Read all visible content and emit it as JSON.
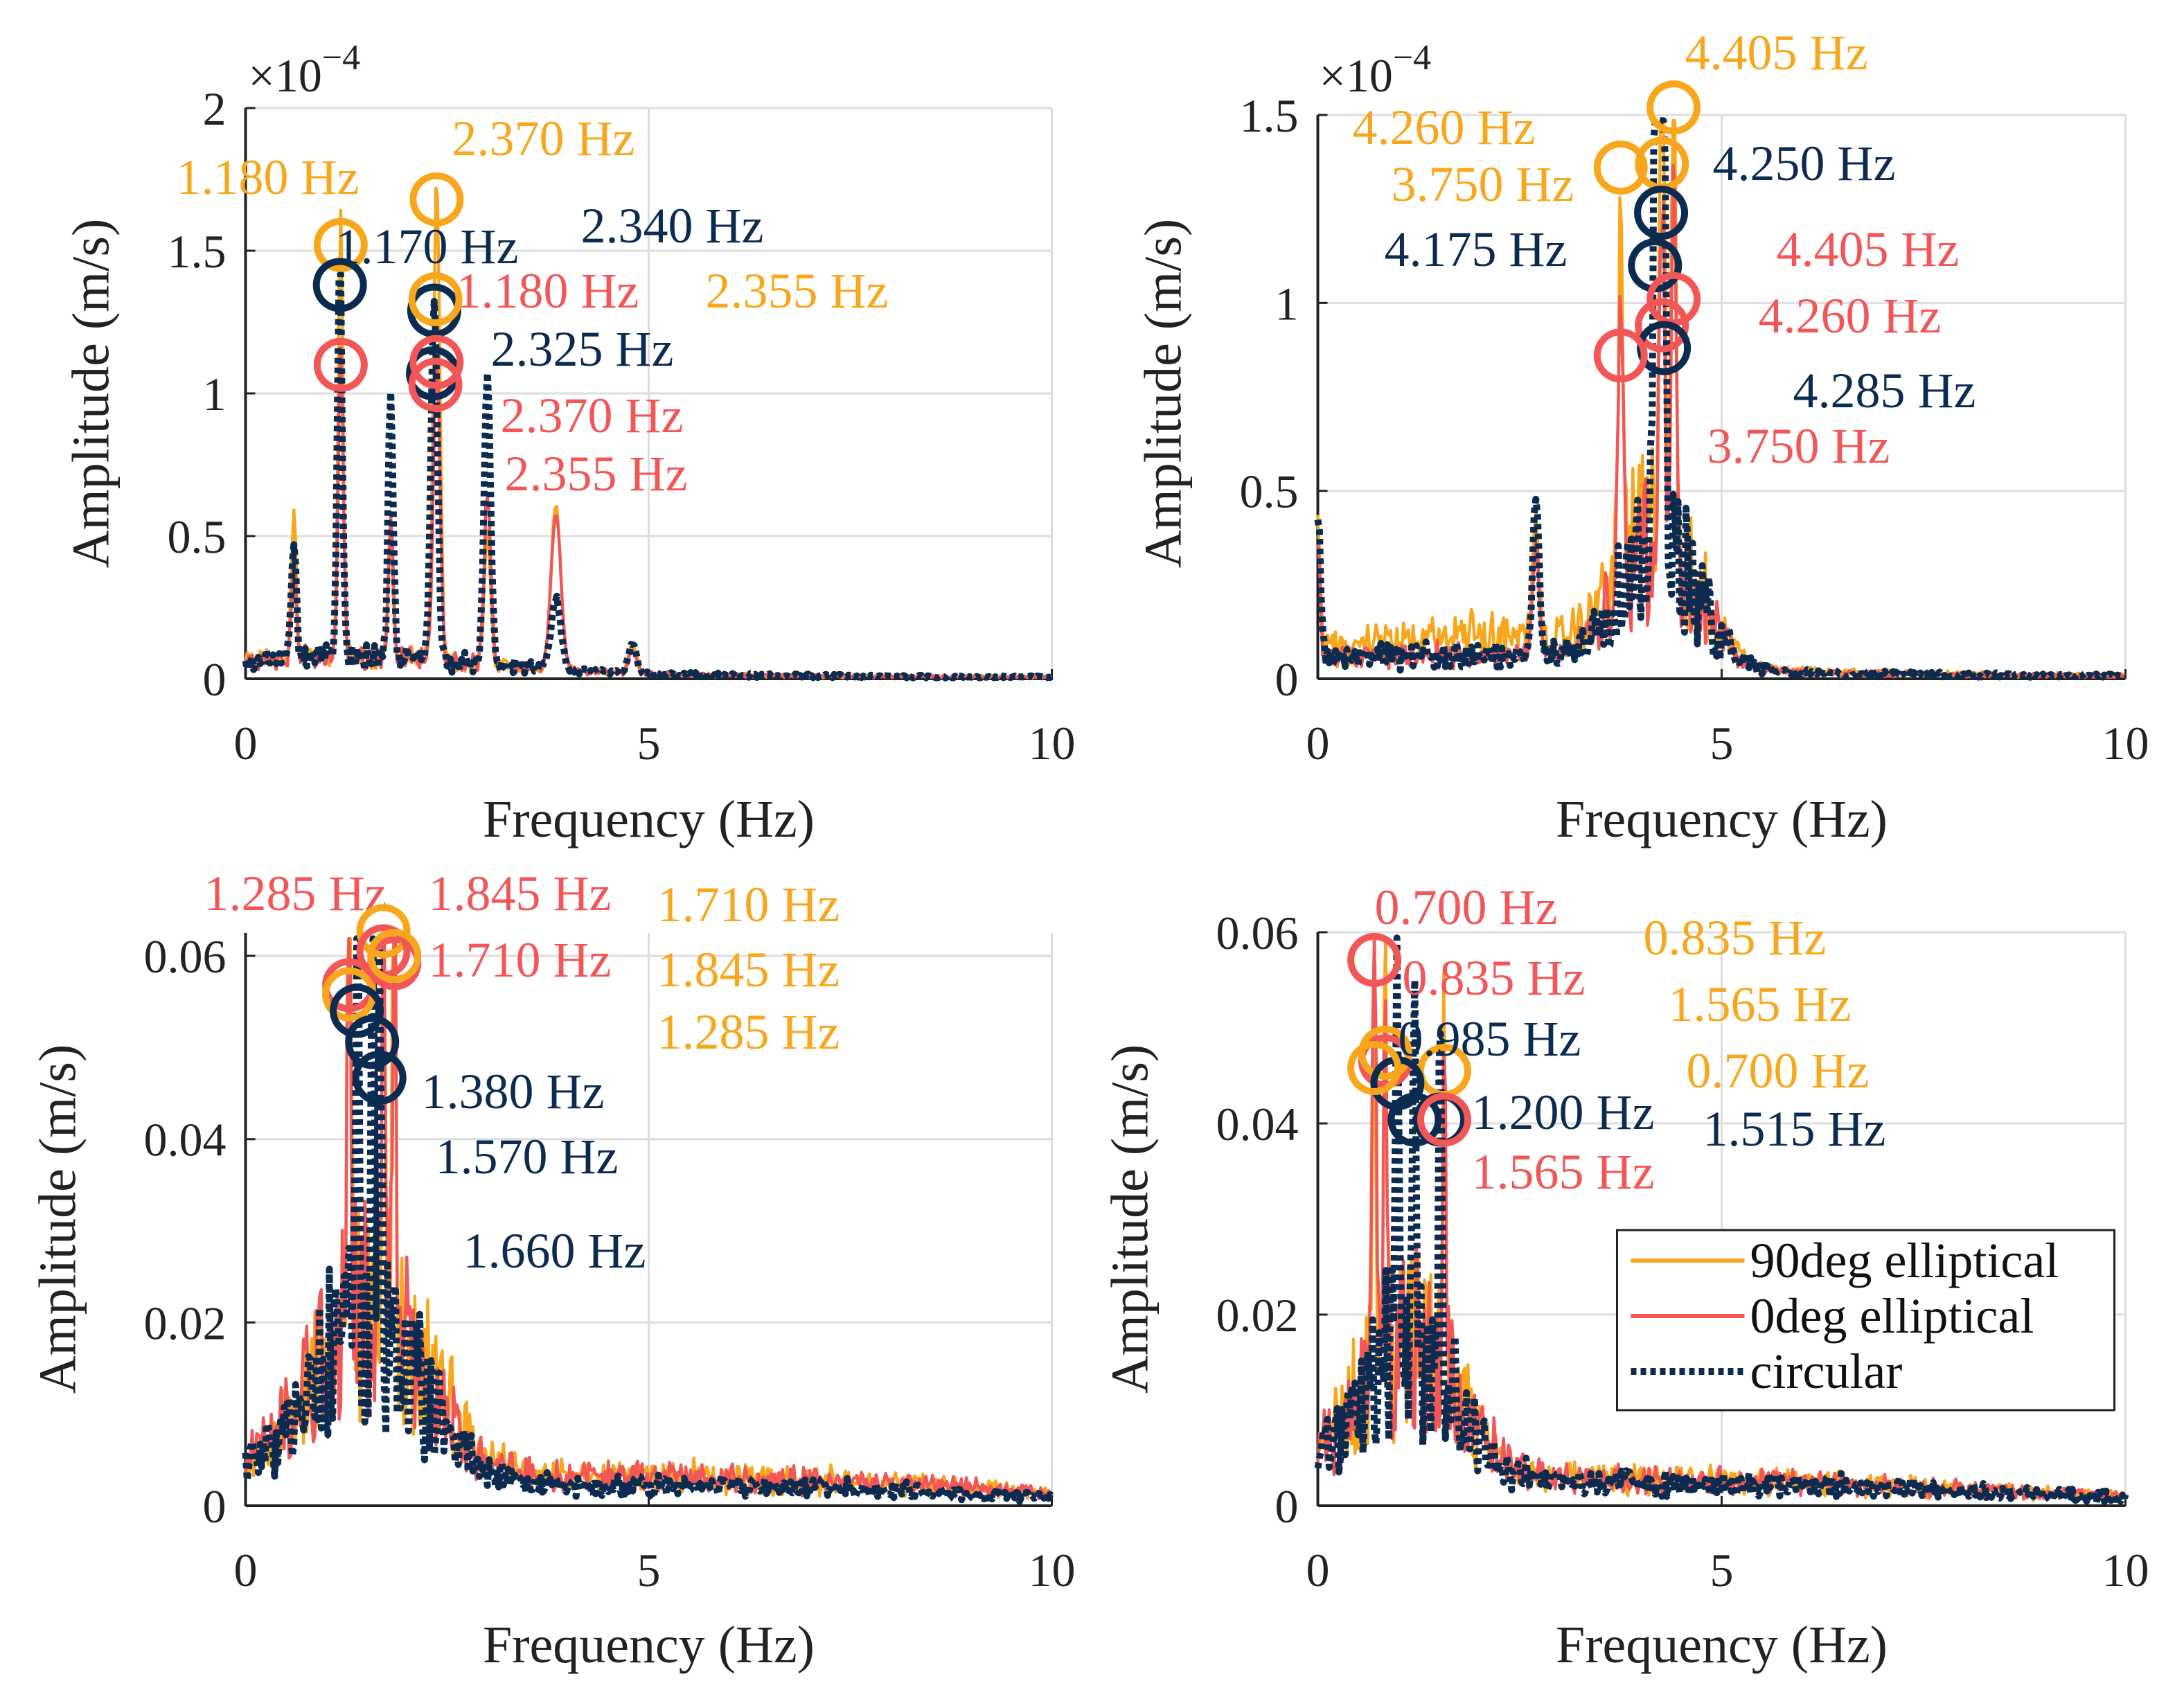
{
  "colors": {
    "orange": "#F8A71C",
    "red": "#F25656",
    "navy": "#0B2B50",
    "grid": "#dddddd",
    "axis": "#222222"
  },
  "legend": {
    "position": "lower-right of bottom-right panel",
    "entries": [
      {
        "series": "orange",
        "label": "90deg elliptical",
        "style": "solid"
      },
      {
        "series": "red",
        "label": "0deg elliptical",
        "style": "solid"
      },
      {
        "series": "navy",
        "label": "circular",
        "style": "dotted"
      }
    ]
  },
  "chart_data": [
    {
      "type": "line",
      "xlabel": "Frequency (Hz)",
      "ylabel": "Amplitude (m/s)",
      "exponent": {
        "base": "×10",
        "power": "−4"
      },
      "xlim": [
        0,
        10
      ],
      "ylim": [
        0,
        2
      ],
      "grid": true,
      "xticks": [
        0,
        5,
        10
      ],
      "xtick_labels": [
        "0",
        "5",
        "10"
      ],
      "yticks": [
        0,
        0.5,
        1,
        1.5,
        2
      ],
      "ytick_labels": [
        "0",
        "0.5",
        "1",
        "1.5",
        "2"
      ],
      "series": [
        {
          "key": "orange",
          "name": "90deg elliptical",
          "noise": 0.04,
          "humps": [
            [
              1.5,
              0.08,
              1.5
            ]
          ],
          "peaks": [
            [
              0.6,
              0.55,
              0.03
            ],
            [
              1.18,
              1.52,
              0.03
            ],
            [
              1.8,
              0.4,
              0.03
            ],
            [
              2.37,
              1.68,
              0.04
            ],
            [
              3.0,
              0.45,
              0.04
            ],
            [
              3.85,
              0.58,
              0.06
            ],
            [
              4.8,
              0.1,
              0.05
            ]
          ]
        },
        {
          "key": "red",
          "name": "0deg elliptical",
          "noise": 0.04,
          "humps": [
            [
              1.5,
              0.08,
              1.5
            ]
          ],
          "peaks": [
            [
              0.6,
              0.35,
              0.03
            ],
            [
              1.18,
              1.1,
              0.03
            ],
            [
              1.8,
              0.5,
              0.03
            ],
            [
              2.37,
              1.11,
              0.04
            ],
            [
              3.0,
              0.6,
              0.04
            ],
            [
              3.85,
              0.55,
              0.06
            ],
            [
              4.8,
              0.08,
              0.05
            ]
          ]
        },
        {
          "key": "navy",
          "name": "circular",
          "noise": 0.04,
          "humps": [
            [
              1.5,
              0.08,
              1.5
            ]
          ],
          "peaks": [
            [
              0.6,
              0.42,
              0.03
            ],
            [
              1.17,
              1.38,
              0.03
            ],
            [
              1.8,
              0.92,
              0.03
            ],
            [
              2.34,
              1.29,
              0.04
            ],
            [
              3.0,
              1.0,
              0.04
            ],
            [
              3.85,
              0.25,
              0.06
            ],
            [
              4.8,
              0.1,
              0.05
            ]
          ]
        }
      ],
      "annotations": [
        {
          "series": "orange",
          "freq": 1.18,
          "amp": 1.52,
          "label": "1.180 Hz"
        },
        {
          "series": "orange",
          "freq": 2.37,
          "amp": 1.68,
          "label": "2.370 Hz"
        },
        {
          "series": "navy",
          "freq": 1.17,
          "amp": 1.38,
          "label": "1.170 Hz"
        },
        {
          "series": "navy",
          "freq": 2.34,
          "amp": 1.29,
          "label": "2.340 Hz"
        },
        {
          "series": "red",
          "freq": 1.18,
          "amp": 1.1,
          "label": "1.180 Hz"
        },
        {
          "series": "orange",
          "freq": 2.355,
          "amp": 1.33,
          "label": "2.355 Hz"
        },
        {
          "series": "navy",
          "freq": 2.325,
          "amp": 1.07,
          "label": "2.325 Hz"
        },
        {
          "series": "red",
          "freq": 2.37,
          "amp": 1.11,
          "label": "2.370 Hz"
        },
        {
          "series": "red",
          "freq": 2.355,
          "amp": 1.03,
          "label": "2.355 Hz"
        }
      ]
    },
    {
      "type": "line",
      "xlabel": "Frequency (Hz)",
      "ylabel": "Amplitude (m/s)",
      "exponent": {
        "base": "×10",
        "power": "−4"
      },
      "xlim": [
        0,
        10
      ],
      "ylim": [
        0,
        1.5
      ],
      "grid": true,
      "xticks": [
        0,
        5,
        10
      ],
      "xtick_labels": [
        "0",
        "5",
        "10"
      ],
      "yticks": [
        0,
        0.5,
        1,
        1.5
      ],
      "ytick_labels": [
        "0",
        "0.5",
        "1",
        "1.5"
      ],
      "series": [
        {
          "key": "orange",
          "name": "90deg elliptical",
          "noise": 0.06,
          "humps": [
            [
              4.2,
              0.55,
              0.5
            ],
            [
              2.0,
              0.12,
              1.5
            ]
          ],
          "peaks": [
            [
              0.0,
              0.35,
              0.03
            ],
            [
              2.7,
              0.3,
              0.04
            ],
            [
              3.75,
              0.9,
              0.03
            ],
            [
              4.26,
              1.3,
              0.03
            ],
            [
              4.405,
              1.45,
              0.03
            ]
          ]
        },
        {
          "key": "red",
          "name": "0deg elliptical",
          "noise": 0.05,
          "humps": [
            [
              4.2,
              0.5,
              0.5
            ],
            [
              2.0,
              0.05,
              1.5
            ]
          ],
          "peaks": [
            [
              0.0,
              0.3,
              0.03
            ],
            [
              2.7,
              0.3,
              0.04
            ],
            [
              3.75,
              0.8,
              0.03
            ],
            [
              4.26,
              0.9,
              0.03
            ],
            [
              4.405,
              0.95,
              0.03
            ]
          ]
        },
        {
          "key": "navy",
          "name": "circular",
          "noise": 0.05,
          "humps": [
            [
              4.2,
              0.5,
              0.5
            ],
            [
              2.0,
              0.05,
              1.5
            ]
          ],
          "peaks": [
            [
              0.0,
              0.4,
              0.03
            ],
            [
              2.7,
              0.42,
              0.04
            ],
            [
              4.175,
              1.05,
              0.03
            ],
            [
              4.25,
              1.2,
              0.03
            ],
            [
              4.285,
              0.85,
              0.03
            ]
          ]
        }
      ],
      "annotations": [
        {
          "series": "orange",
          "freq": 4.405,
          "amp": 1.52,
          "label": "4.405 Hz"
        },
        {
          "series": "orange",
          "freq": 4.26,
          "amp": 1.37,
          "label": "4.260 Hz"
        },
        {
          "series": "orange",
          "freq": 3.75,
          "amp": 1.36,
          "label": "3.750 Hz"
        },
        {
          "series": "navy",
          "freq": 4.25,
          "amp": 1.24,
          "label": "4.250 Hz"
        },
        {
          "series": "navy",
          "freq": 4.175,
          "amp": 1.1,
          "label": "4.175 Hz"
        },
        {
          "series": "red",
          "freq": 4.405,
          "amp": 1.01,
          "label": "4.405 Hz"
        },
        {
          "series": "red",
          "freq": 4.26,
          "amp": 0.94,
          "label": "4.260 Hz"
        },
        {
          "series": "navy",
          "freq": 4.285,
          "amp": 0.88,
          "label": "4.285 Hz"
        },
        {
          "series": "red",
          "freq": 3.75,
          "amp": 0.86,
          "label": "3.750 Hz"
        }
      ]
    },
    {
      "type": "line",
      "xlabel": "Frequency (Hz)",
      "ylabel": "Amplitude (m/s)",
      "xlim": [
        0,
        10
      ],
      "ylim": [
        0,
        0.0625
      ],
      "grid": true,
      "xticks": [
        0,
        5,
        10
      ],
      "xtick_labels": [
        "0",
        "5",
        "10"
      ],
      "yticks": [
        0,
        0.02,
        0.04,
        0.06
      ],
      "ytick_labels": [
        "0",
        "0.02",
        "0.04",
        "0.06"
      ],
      "series": [
        {
          "key": "orange",
          "name": "90deg elliptical",
          "noise": 0.004,
          "humps": [
            [
              1.6,
              0.028,
              0.7
            ],
            [
              6.0,
              0.003,
              3.0
            ]
          ],
          "peaks": [
            [
              1.71,
              0.06,
              0.02
            ],
            [
              1.845,
              0.058,
              0.02
            ],
            [
              1.285,
              0.055,
              0.02
            ]
          ]
        },
        {
          "key": "red",
          "name": "0deg elliptical",
          "noise": 0.004,
          "humps": [
            [
              1.5,
              0.028,
              0.7
            ],
            [
              6.0,
              0.003,
              3.0
            ]
          ],
          "peaks": [
            [
              1.285,
              0.056,
              0.02
            ],
            [
              1.845,
              0.058,
              0.02
            ],
            [
              1.71,
              0.059,
              0.02
            ]
          ]
        },
        {
          "key": "navy",
          "name": "circular",
          "noise": 0.003,
          "humps": [
            [
              1.5,
              0.026,
              0.7
            ],
            [
              6.0,
              0.002,
              3.0
            ]
          ],
          "peaks": [
            [
              1.38,
              0.053,
              0.02
            ],
            [
              1.57,
              0.05,
              0.02
            ],
            [
              1.66,
              0.046,
              0.02
            ]
          ]
        }
      ],
      "annotations": [
        {
          "series": "red",
          "freq": 1.285,
          "amp": 0.0568,
          "label": "1.285 Hz"
        },
        {
          "series": "red",
          "freq": 1.845,
          "amp": 0.0592,
          "label": "1.845 Hz"
        },
        {
          "series": "orange",
          "freq": 1.71,
          "amp": 0.0627,
          "label": "1.710 Hz"
        },
        {
          "series": "red",
          "freq": 1.71,
          "amp": 0.0605,
          "label": "1.710 Hz"
        },
        {
          "series": "orange",
          "freq": 1.845,
          "amp": 0.06,
          "label": "1.845 Hz"
        },
        {
          "series": "orange",
          "freq": 1.285,
          "amp": 0.0558,
          "label": "1.285 Hz"
        },
        {
          "series": "navy",
          "freq": 1.38,
          "amp": 0.054,
          "label": "1.380 Hz"
        },
        {
          "series": "navy",
          "freq": 1.57,
          "amp": 0.0506,
          "label": "1.570 Hz"
        },
        {
          "series": "navy",
          "freq": 1.66,
          "amp": 0.0467,
          "label": "1.660 Hz"
        }
      ]
    },
    {
      "type": "line",
      "xlabel": "Frequency (Hz)",
      "ylabel": "Amplitude (m/s)",
      "xlim": [
        0,
        10
      ],
      "ylim": [
        0,
        0.06
      ],
      "grid": true,
      "xticks": [
        0,
        5,
        10
      ],
      "xtick_labels": [
        "0",
        "5",
        "10"
      ],
      "yticks": [
        0,
        0.02,
        0.04,
        0.06
      ],
      "ytick_labels": [
        "0",
        "0.02",
        "0.04",
        "0.06"
      ],
      "series": [
        {
          "key": "orange",
          "name": "90deg elliptical",
          "noise": 0.004,
          "humps": [
            [
              1.1,
              0.022,
              0.6
            ],
            [
              5.5,
              0.002,
              3.0
            ]
          ],
          "peaks": [
            [
              0.7,
              0.045,
              0.02
            ],
            [
              0.835,
              0.047,
              0.02
            ],
            [
              1.565,
              0.04,
              0.02
            ]
          ]
        },
        {
          "key": "red",
          "name": "0deg elliptical",
          "noise": 0.004,
          "humps": [
            [
              1.1,
              0.022,
              0.6
            ],
            [
              5.5,
              0.002,
              3.0
            ]
          ],
          "peaks": [
            [
              0.7,
              0.057,
              0.02
            ],
            [
              0.835,
              0.045,
              0.02
            ],
            [
              1.565,
              0.04,
              0.02
            ]
          ]
        },
        {
          "key": "navy",
          "name": "circular",
          "noise": 0.003,
          "humps": [
            [
              1.1,
              0.022,
              0.6
            ],
            [
              5.5,
              0.002,
              3.0
            ]
          ],
          "peaks": [
            [
              0.985,
              0.044,
              0.02
            ],
            [
              1.2,
              0.04,
              0.02
            ],
            [
              1.515,
              0.038,
              0.02
            ]
          ]
        }
      ],
      "annotations": [
        {
          "series": "red",
          "freq": 0.7,
          "amp": 0.0571,
          "label": "0.700 Hz"
        },
        {
          "series": "red",
          "freq": 0.835,
          "amp": 0.0465,
          "label": "0.835 Hz"
        },
        {
          "series": "orange",
          "freq": 0.835,
          "amp": 0.0474,
          "label": "0.835 Hz"
        },
        {
          "series": "orange",
          "freq": 1.565,
          "amp": 0.0455,
          "label": "1.565 Hz"
        },
        {
          "series": "navy",
          "freq": 0.985,
          "amp": 0.0442,
          "label": "0.985 Hz"
        },
        {
          "series": "orange",
          "freq": 0.7,
          "amp": 0.0458,
          "label": "0.700 Hz"
        },
        {
          "series": "navy",
          "freq": 1.2,
          "amp": 0.0404,
          "label": "1.200 Hz"
        },
        {
          "series": "navy",
          "freq": 1.515,
          "amp": 0.0404,
          "label": "1.515 Hz"
        },
        {
          "series": "red",
          "freq": 1.565,
          "amp": 0.0404,
          "label": "1.565 Hz"
        }
      ]
    }
  ]
}
